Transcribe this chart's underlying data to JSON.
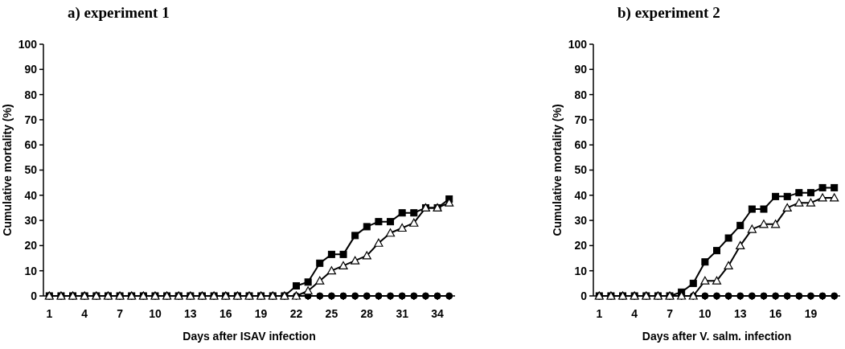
{
  "chart_data": [
    {
      "type": "line",
      "title": "a) experiment 1",
      "xlabel": "Days after ISAV infection",
      "ylabel": "Cumulative mortality (%)",
      "x": [
        1,
        2,
        3,
        4,
        5,
        6,
        7,
        8,
        9,
        10,
        11,
        12,
        13,
        14,
        15,
        16,
        17,
        18,
        19,
        20,
        21,
        22,
        23,
        24,
        25,
        26,
        27,
        28,
        29,
        30,
        31,
        32,
        33,
        34,
        35
      ],
      "series": [
        {
          "color": "#000000",
          "marker": "circle",
          "values": [
            0,
            0,
            0,
            0,
            0,
            0,
            0,
            0,
            0,
            0,
            0,
            0,
            0,
            0,
            0,
            0,
            0,
            0,
            0,
            0,
            0,
            0,
            0,
            0,
            0,
            0,
            0,
            0,
            0,
            0,
            0,
            0,
            0,
            0,
            0
          ]
        },
        {
          "color": "#000000",
          "marker": "square",
          "values": [
            0,
            0,
            0,
            0,
            0,
            0,
            0,
            0,
            0,
            0,
            0,
            0,
            0,
            0,
            0,
            0,
            0,
            0,
            0,
            0,
            0,
            4,
            5.5,
            13,
            16.5,
            16.5,
            24,
            27.5,
            29.5,
            29.5,
            33,
            33,
            35,
            35,
            38.5
          ]
        },
        {
          "color": "#000000",
          "marker": "triangle",
          "values": [
            0,
            0,
            0,
            0,
            0,
            0,
            0,
            0,
            0,
            0,
            0,
            0,
            0,
            0,
            0,
            0,
            0,
            0,
            0,
            0,
            0,
            0,
            2,
            6,
            10,
            12,
            14,
            16,
            21,
            25,
            27,
            29,
            35,
            35,
            37
          ]
        }
      ],
      "xlim": [
        0.5,
        35.5
      ],
      "xticks": [
        1,
        {
          "value": 2,
          "label": null
        },
        {
          "value": 3,
          "label": null
        },
        4,
        {
          "value": 5,
          "label": null
        },
        {
          "value": 6,
          "label": null
        },
        7,
        {
          "value": 8,
          "label": null
        },
        {
          "value": 9,
          "label": null
        },
        10,
        {
          "value": 11,
          "label": null
        },
        {
          "value": 12,
          "label": null
        },
        13,
        {
          "value": 14,
          "label": null
        },
        {
          "value": 15,
          "label": null
        },
        16,
        {
          "value": 17,
          "label": null
        },
        {
          "value": 18,
          "label": null
        },
        19,
        {
          "value": 20,
          "label": null
        },
        {
          "value": 21,
          "label": null
        },
        22,
        {
          "value": 23,
          "label": null
        },
        {
          "value": 24,
          "label": null
        },
        25,
        {
          "value": 26,
          "label": null
        },
        {
          "value": 27,
          "label": null
        },
        28,
        {
          "value": 29,
          "label": null
        },
        {
          "value": 30,
          "label": null
        },
        31,
        {
          "value": 32,
          "label": null
        },
        {
          "value": 33,
          "label": null
        },
        34,
        {
          "value": 35,
          "label": null
        }
      ],
      "ylim": [
        0,
        100
      ],
      "yticks": [
        0,
        10,
        20,
        30,
        40,
        50,
        60,
        70,
        80,
        90,
        100
      ],
      "grid": false,
      "line_style": "solid"
    },
    {
      "type": "line",
      "title": "b) experiment 2",
      "xlabel": "Days after V. salm. infection",
      "ylabel": "Cumulative mortality (%)",
      "x": [
        1,
        2,
        3,
        4,
        5,
        6,
        7,
        8,
        9,
        10,
        11,
        12,
        13,
        14,
        15,
        16,
        17,
        18,
        19,
        20,
        21
      ],
      "series": [
        {
          "color": "#000000",
          "marker": "circle",
          "values": [
            0,
            0,
            0,
            0,
            0,
            0,
            0,
            0,
            0,
            0,
            0,
            0,
            0,
            0,
            0,
            0,
            0,
            0,
            0,
            0,
            0
          ]
        },
        {
          "color": "#000000",
          "marker": "square",
          "values": [
            0,
            0,
            0,
            0,
            0,
            0,
            0,
            1.5,
            5,
            13.5,
            18,
            23,
            28,
            34.5,
            34.5,
            39.5,
            39.5,
            41,
            41,
            43,
            43
          ]
        },
        {
          "color": "#000000",
          "marker": "triangle",
          "values": [
            0,
            0,
            0,
            0,
            0,
            0,
            0,
            0,
            0,
            6,
            6,
            12,
            20,
            26.5,
            28.5,
            28.5,
            35,
            37,
            37,
            39,
            39
          ]
        }
      ],
      "xlim": [
        0.5,
        21.5
      ],
      "xticks": [
        1,
        {
          "value": 2,
          "label": null
        },
        {
          "value": 3,
          "label": null
        },
        4,
        {
          "value": 5,
          "label": null
        },
        {
          "value": 6,
          "label": null
        },
        7,
        {
          "value": 8,
          "label": null
        },
        {
          "value": 9,
          "label": null
        },
        10,
        {
          "value": 11,
          "label": null
        },
        {
          "value": 12,
          "label": null
        },
        13,
        {
          "value": 14,
          "label": null
        },
        {
          "value": 15,
          "label": null
        },
        16,
        {
          "value": 17,
          "label": null
        },
        {
          "value": 18,
          "label": null
        },
        19,
        {
          "value": 20,
          "label": null
        },
        {
          "value": 21,
          "label": null
        }
      ],
      "ylim": [
        0,
        100
      ],
      "yticks": [
        0,
        10,
        20,
        30,
        40,
        50,
        60,
        70,
        80,
        90,
        100
      ],
      "grid": false,
      "line_style": "solid"
    }
  ]
}
